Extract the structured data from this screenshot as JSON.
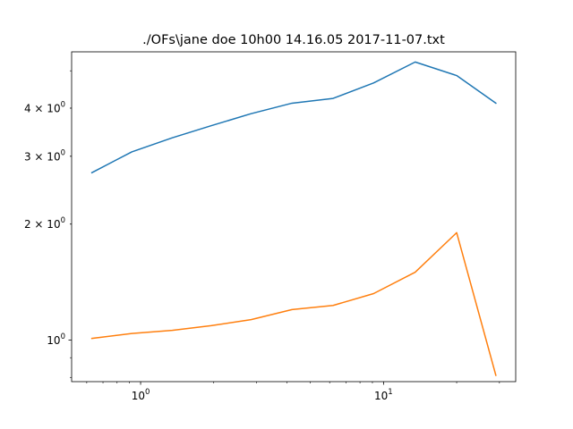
{
  "chart_data": {
    "type": "line",
    "title": "./OFs\\jane doe 10h00 14.16.05 2017-11-07.txt",
    "xlabel": "",
    "ylabel": "",
    "xscale": "log",
    "yscale": "log",
    "xlim": [
      0.52,
      35
    ],
    "ylim": [
      0.78,
      5.6
    ],
    "grid": false,
    "x_tick_labels": [
      {
        "value": 1,
        "base": "10",
        "exp": "0"
      },
      {
        "value": 10,
        "base": "10",
        "exp": "1"
      }
    ],
    "y_tick_labels": [
      {
        "value": 1,
        "base": "10",
        "exp": "0",
        "mult": ""
      },
      {
        "value": 2,
        "base": "10",
        "exp": "0",
        "mult": "2 × "
      },
      {
        "value": 3,
        "base": "10",
        "exp": "0",
        "mult": "3 × "
      },
      {
        "value": 4,
        "base": "10",
        "exp": "0",
        "mult": "4 × "
      }
    ],
    "x": [
      0.63,
      0.92,
      1.35,
      1.95,
      2.85,
      4.2,
      6.2,
      9.1,
      13.5,
      20,
      29
    ],
    "series": [
      {
        "color": "#1f77b4",
        "values": [
          2.72,
          3.08,
          3.35,
          3.6,
          3.87,
          4.12,
          4.24,
          4.65,
          5.27,
          4.86,
          4.12
        ]
      },
      {
        "color": "#ff7f0e",
        "values": [
          1.01,
          1.04,
          1.06,
          1.09,
          1.13,
          1.2,
          1.23,
          1.32,
          1.5,
          1.9,
          0.81
        ]
      }
    ]
  }
}
